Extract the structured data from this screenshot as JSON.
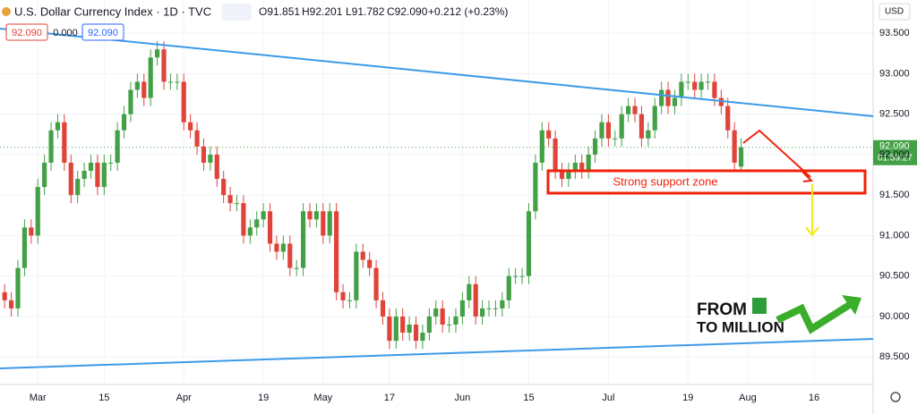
{
  "chart_data": {
    "type": "candlestick",
    "title": "U.S. Dollar Currency Index · 1D · TVC",
    "ohlc_header": {
      "open": "O91.851",
      "high": "H92.201",
      "low": "L91.782",
      "close": "C92.090",
      "change": "+0.212 (+0.23%)"
    },
    "top_labels": [
      "92.090",
      "0.000",
      "92.090"
    ],
    "currency": "USD",
    "last_price_label": "92.090",
    "countdown": "01:59:27",
    "last_price": 92.09,
    "annotation": "Strong support zone",
    "logo": {
      "line1": "FROM",
      "line2": "TO MILLION"
    },
    "up_color": "#43a047",
    "down_color": "#e0433a",
    "open": [
      90.3,
      90.2,
      90.1,
      90.6,
      91.1,
      91.0,
      91.6,
      91.9,
      92.3,
      92.4,
      91.9,
      91.5,
      91.7,
      91.8,
      91.9,
      91.6,
      91.9,
      91.9,
      92.3,
      92.5,
      92.8,
      92.9,
      92.7,
      93.2,
      93.3,
      92.9,
      92.9,
      92.9,
      92.4,
      92.3,
      92.1,
      91.9,
      92.0,
      91.7,
      91.5,
      91.4,
      91.4,
      91.0,
      91.1,
      91.2,
      91.3,
      90.9,
      90.8,
      90.9,
      90.6,
      90.6,
      91.3,
      91.2,
      91.3,
      91.0,
      91.3,
      90.3,
      90.2,
      90.2,
      90.8,
      90.7,
      90.6,
      90.2,
      90.0,
      89.7,
      90.0,
      89.8,
      89.9,
      89.7,
      89.8,
      90.0,
      90.1,
      89.9,
      89.9,
      90.0,
      90.2,
      90.4,
      90.0,
      90.1,
      90.1,
      90.1,
      90.2,
      90.5,
      90.5,
      90.5,
      91.3,
      91.9,
      92.3,
      92.2,
      91.8,
      91.7,
      91.8,
      91.9,
      91.8,
      92.0,
      92.2,
      92.4,
      92.2,
      92.2,
      92.5,
      92.6,
      92.5,
      92.2,
      92.3,
      92.6,
      92.8,
      92.6,
      92.7,
      92.9,
      92.9,
      92.8,
      92.9,
      92.9,
      92.7,
      92.6,
      92.3,
      91.851
    ],
    "high": [
      90.4,
      90.3,
      90.7,
      91.2,
      91.2,
      91.7,
      92.0,
      92.4,
      92.5,
      92.5,
      92.0,
      91.8,
      91.9,
      92.0,
      92.0,
      92.0,
      92.0,
      92.4,
      92.6,
      92.9,
      93.0,
      93.0,
      93.3,
      93.4,
      93.4,
      93.0,
      93.0,
      93.0,
      92.5,
      92.4,
      92.2,
      92.1,
      92.1,
      91.8,
      91.6,
      91.5,
      91.5,
      91.2,
      91.3,
      91.4,
      91.4,
      91.0,
      91.0,
      91.0,
      90.7,
      91.4,
      91.4,
      91.4,
      91.4,
      91.4,
      91.4,
      90.4,
      90.3,
      90.9,
      90.9,
      90.8,
      90.7,
      90.3,
      90.1,
      90.1,
      90.1,
      90.0,
      90.0,
      89.9,
      90.1,
      90.2,
      90.2,
      90.0,
      90.1,
      90.3,
      90.5,
      90.5,
      90.2,
      90.2,
      90.2,
      90.3,
      90.6,
      90.6,
      90.6,
      91.4,
      92.0,
      92.4,
      92.4,
      92.3,
      91.9,
      91.9,
      92.0,
      92.0,
      92.1,
      92.3,
      92.5,
      92.5,
      92.3,
      92.6,
      92.7,
      92.7,
      92.6,
      92.4,
      92.7,
      92.9,
      92.9,
      92.8,
      93.0,
      93.0,
      93.0,
      93.0,
      93.0,
      93.0,
      92.8,
      92.7,
      92.4,
      92.201
    ],
    "low": [
      90.1,
      90.0,
      90.0,
      90.5,
      90.9,
      90.9,
      91.5,
      91.8,
      92.2,
      91.8,
      91.4,
      91.4,
      91.6,
      91.7,
      91.5,
      91.5,
      91.8,
      91.8,
      92.2,
      92.4,
      92.7,
      92.6,
      92.6,
      93.1,
      92.8,
      92.8,
      92.8,
      92.3,
      92.2,
      92.0,
      91.8,
      91.8,
      91.6,
      91.4,
      91.3,
      91.3,
      90.9,
      90.9,
      91.0,
      91.1,
      90.8,
      90.7,
      90.7,
      90.5,
      90.5,
      90.5,
      91.1,
      91.1,
      90.9,
      90.9,
      90.2,
      90.1,
      90.1,
      90.1,
      90.6,
      90.5,
      90.1,
      89.9,
      89.6,
      89.6,
      89.7,
      89.7,
      89.6,
      89.6,
      89.7,
      89.9,
      89.8,
      89.8,
      89.8,
      89.9,
      90.1,
      89.9,
      89.9,
      90.0,
      90.0,
      90.0,
      90.1,
      90.4,
      90.4,
      90.4,
      91.2,
      91.8,
      92.1,
      91.7,
      91.6,
      91.6,
      91.7,
      91.7,
      91.7,
      91.9,
      92.1,
      92.1,
      92.1,
      92.1,
      92.4,
      92.4,
      92.1,
      92.1,
      92.2,
      92.5,
      92.5,
      92.5,
      92.6,
      92.8,
      92.7,
      92.7,
      92.8,
      92.6,
      92.5,
      92.2,
      91.8,
      91.782
    ],
    "close": [
      90.2,
      90.1,
      90.6,
      91.1,
      91.0,
      91.6,
      91.9,
      92.3,
      92.4,
      91.9,
      91.5,
      91.7,
      91.8,
      91.9,
      91.6,
      91.9,
      91.9,
      92.3,
      92.5,
      92.8,
      92.9,
      92.7,
      93.2,
      93.3,
      92.9,
      92.9,
      92.9,
      92.4,
      92.3,
      92.1,
      91.9,
      92.0,
      91.7,
      91.5,
      91.4,
      91.4,
      91.0,
      91.1,
      91.2,
      91.3,
      90.9,
      90.8,
      90.9,
      90.6,
      90.6,
      91.3,
      91.2,
      91.3,
      91.0,
      91.3,
      90.3,
      90.2,
      90.2,
      90.8,
      90.7,
      90.6,
      90.2,
      90.0,
      89.7,
      90.0,
      89.8,
      89.9,
      89.7,
      89.8,
      90.0,
      90.1,
      89.9,
      89.9,
      90.0,
      90.2,
      90.4,
      90.0,
      90.1,
      90.1,
      90.1,
      90.2,
      90.5,
      90.5,
      90.5,
      91.3,
      91.9,
      92.3,
      92.2,
      91.8,
      91.7,
      91.8,
      91.9,
      91.8,
      92.0,
      92.2,
      92.4,
      92.2,
      92.2,
      92.5,
      92.6,
      92.5,
      92.2,
      92.3,
      92.6,
      92.8,
      92.6,
      92.7,
      92.9,
      92.9,
      92.8,
      92.9,
      92.9,
      92.7,
      92.6,
      92.3,
      91.9,
      92.09
    ],
    "xlim": [
      -0.7,
      130.9
    ],
    "xticks": [
      {
        "value": 5,
        "label": "Mar"
      },
      {
        "value": 15,
        "label": "15"
      },
      {
        "value": 27,
        "label": "Apr"
      },
      {
        "value": 39,
        "label": "19"
      },
      {
        "value": 48,
        "label": "May"
      },
      {
        "value": 58,
        "label": "17"
      },
      {
        "value": 69,
        "label": "Jun"
      },
      {
        "value": 79,
        "label": "15"
      },
      {
        "value": 91,
        "label": "Jul"
      },
      {
        "value": 103,
        "label": "19"
      },
      {
        "value": 112,
        "label": "Aug"
      },
      {
        "value": 122,
        "label": "16"
      }
    ],
    "ylim": [
      89.16,
      93.91
    ],
    "yticks": [
      {
        "value": 93.5,
        "label": "93.500"
      },
      {
        "value": 93.0,
        "label": "93.000"
      },
      {
        "value": 92.5,
        "label": "92.500"
      },
      {
        "value": 92.0,
        "label": "92.000"
      },
      {
        "value": 91.5,
        "label": "91.500"
      },
      {
        "value": 91.0,
        "label": "91.000"
      },
      {
        "value": 90.5,
        "label": "90.500"
      },
      {
        "value": 90.0,
        "label": "90.000"
      },
      {
        "value": 89.5,
        "label": "89.500"
      }
    ],
    "grid": true
  }
}
